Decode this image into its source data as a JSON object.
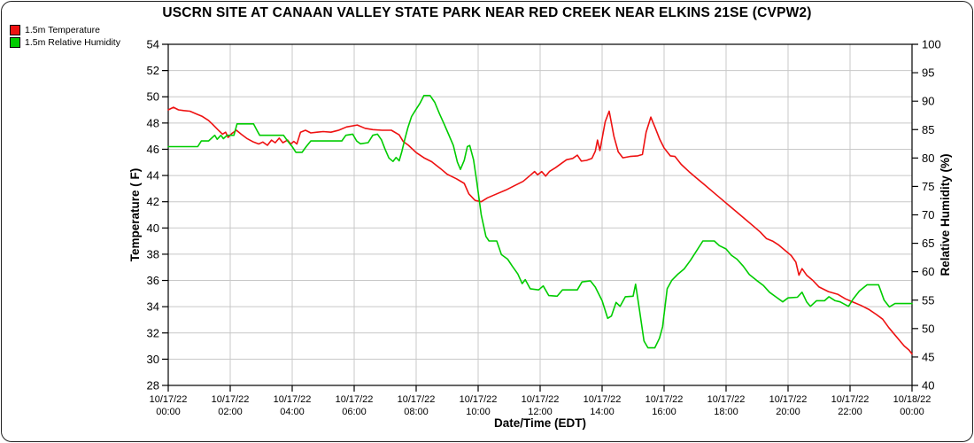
{
  "title": "USCRN SITE AT CANAAN VALLEY STATE PARK NEAR RED CREEK NEAR ELKINS 21SE (CVPW2)",
  "colors": {
    "temperature": "#ee1111",
    "humidity": "#00cc00",
    "grid": "#c8c8c8",
    "axis": "#000000"
  },
  "chart_data": {
    "type": "line",
    "title": "USCRN SITE AT CANAAN VALLEY STATE PARK NEAR RED CREEK NEAR ELKINS 21SE (CVPW2)",
    "grid": true,
    "legend_position": "top-left",
    "x_axis": {
      "label": "Date/Time (EDT)",
      "min_hours": 0,
      "max_hours": 24,
      "ticks": [
        {
          "hour": 0,
          "date": "10/17/22",
          "time": "00:00"
        },
        {
          "hour": 2,
          "date": "10/17/22",
          "time": "02:00"
        },
        {
          "hour": 4,
          "date": "10/17/22",
          "time": "04:00"
        },
        {
          "hour": 6,
          "date": "10/17/22",
          "time": "06:00"
        },
        {
          "hour": 8,
          "date": "10/17/22",
          "time": "08:00"
        },
        {
          "hour": 10,
          "date": "10/17/22",
          "time": "10:00"
        },
        {
          "hour": 12,
          "date": "10/17/22",
          "time": "12:00"
        },
        {
          "hour": 14,
          "date": "10/17/22",
          "time": "14:00"
        },
        {
          "hour": 16,
          "date": "10/17/22",
          "time": "16:00"
        },
        {
          "hour": 18,
          "date": "10/17/22",
          "time": "18:00"
        },
        {
          "hour": 20,
          "date": "10/17/22",
          "time": "20:00"
        },
        {
          "hour": 22,
          "date": "10/17/22",
          "time": "22:00"
        },
        {
          "hour": 24,
          "date": "10/18/22",
          "time": "00:00"
        }
      ]
    },
    "y_left": {
      "label": "Temperature ( F)",
      "min": 28,
      "max": 54,
      "ticks": [
        54,
        52,
        50,
        48,
        46,
        44,
        42,
        40,
        38,
        36,
        34,
        32,
        30,
        28
      ]
    },
    "y_right": {
      "label": "Relative Humidity (%)",
      "min": 40,
      "max": 100,
      "ticks": [
        100,
        95,
        90,
        85,
        80,
        75,
        70,
        65,
        60,
        55,
        50,
        45,
        40
      ]
    },
    "series": [
      {
        "name": "1.5m Temperature",
        "axis": "left",
        "color": "#ee1111",
        "points": [
          [
            0,
            49.0
          ],
          [
            0.17,
            49.2
          ],
          [
            0.33,
            49.0
          ],
          [
            0.5,
            48.95
          ],
          [
            0.7,
            48.9
          ],
          [
            0.9,
            48.7
          ],
          [
            1.1,
            48.5
          ],
          [
            1.3,
            48.2
          ],
          [
            1.43,
            47.9
          ],
          [
            1.6,
            47.5
          ],
          [
            1.75,
            47.15
          ],
          [
            1.85,
            47.3
          ],
          [
            1.93,
            46.9
          ],
          [
            2.05,
            47.2
          ],
          [
            2.2,
            47.45
          ],
          [
            2.35,
            47.15
          ],
          [
            2.55,
            46.8
          ],
          [
            2.75,
            46.55
          ],
          [
            2.92,
            46.4
          ],
          [
            3.05,
            46.55
          ],
          [
            3.2,
            46.3
          ],
          [
            3.33,
            46.7
          ],
          [
            3.45,
            46.5
          ],
          [
            3.58,
            46.85
          ],
          [
            3.7,
            46.5
          ],
          [
            3.85,
            46.7
          ],
          [
            3.95,
            46.4
          ],
          [
            4.05,
            46.6
          ],
          [
            4.15,
            46.4
          ],
          [
            4.27,
            47.3
          ],
          [
            4.43,
            47.45
          ],
          [
            4.6,
            47.25
          ],
          [
            4.8,
            47.3
          ],
          [
            5.0,
            47.35
          ],
          [
            5.25,
            47.3
          ],
          [
            5.5,
            47.45
          ],
          [
            5.75,
            47.7
          ],
          [
            6.1,
            47.85
          ],
          [
            6.35,
            47.6
          ],
          [
            6.6,
            47.5
          ],
          [
            6.9,
            47.45
          ],
          [
            7.2,
            47.45
          ],
          [
            7.45,
            47.1
          ],
          [
            7.58,
            46.6
          ],
          [
            7.75,
            46.3
          ],
          [
            8.0,
            45.75
          ],
          [
            8.25,
            45.35
          ],
          [
            8.5,
            45.05
          ],
          [
            8.8,
            44.5
          ],
          [
            9.0,
            44.1
          ],
          [
            9.3,
            43.75
          ],
          [
            9.55,
            43.4
          ],
          [
            9.7,
            42.6
          ],
          [
            9.9,
            42.1
          ],
          [
            10.1,
            42.0
          ],
          [
            10.3,
            42.3
          ],
          [
            10.6,
            42.6
          ],
          [
            10.9,
            42.9
          ],
          [
            11.15,
            43.2
          ],
          [
            11.45,
            43.55
          ],
          [
            11.7,
            44.05
          ],
          [
            11.82,
            44.3
          ],
          [
            11.92,
            44.05
          ],
          [
            12.05,
            44.3
          ],
          [
            12.18,
            43.95
          ],
          [
            12.3,
            44.3
          ],
          [
            12.5,
            44.6
          ],
          [
            12.67,
            44.9
          ],
          [
            12.85,
            45.2
          ],
          [
            13.05,
            45.3
          ],
          [
            13.2,
            45.55
          ],
          [
            13.33,
            45.1
          ],
          [
            13.5,
            45.15
          ],
          [
            13.67,
            45.3
          ],
          [
            13.78,
            45.85
          ],
          [
            13.85,
            46.7
          ],
          [
            13.93,
            45.9
          ],
          [
            14.1,
            48.1
          ],
          [
            14.23,
            48.9
          ],
          [
            14.38,
            47.0
          ],
          [
            14.52,
            45.8
          ],
          [
            14.67,
            45.35
          ],
          [
            14.9,
            45.45
          ],
          [
            15.15,
            45.5
          ],
          [
            15.3,
            45.6
          ],
          [
            15.42,
            47.3
          ],
          [
            15.57,
            48.45
          ],
          [
            15.72,
            47.6
          ],
          [
            15.85,
            46.8
          ],
          [
            16.0,
            46.1
          ],
          [
            16.2,
            45.5
          ],
          [
            16.35,
            45.45
          ],
          [
            16.55,
            44.85
          ],
          [
            16.8,
            44.3
          ],
          [
            17.0,
            43.9
          ],
          [
            17.3,
            43.3
          ],
          [
            17.6,
            42.7
          ],
          [
            17.9,
            42.1
          ],
          [
            18.1,
            41.7
          ],
          [
            18.35,
            41.2
          ],
          [
            18.6,
            40.7
          ],
          [
            18.85,
            40.2
          ],
          [
            19.1,
            39.7
          ],
          [
            19.3,
            39.2
          ],
          [
            19.5,
            39.0
          ],
          [
            19.7,
            38.7
          ],
          [
            19.9,
            38.3
          ],
          [
            20.1,
            37.9
          ],
          [
            20.25,
            37.4
          ],
          [
            20.35,
            36.4
          ],
          [
            20.45,
            36.9
          ],
          [
            20.6,
            36.4
          ],
          [
            20.8,
            36.0
          ],
          [
            21.0,
            35.5
          ],
          [
            21.3,
            35.15
          ],
          [
            21.6,
            34.95
          ],
          [
            21.85,
            34.6
          ],
          [
            22.1,
            34.35
          ],
          [
            22.35,
            34.1
          ],
          [
            22.6,
            33.8
          ],
          [
            22.85,
            33.4
          ],
          [
            23.05,
            33.05
          ],
          [
            23.25,
            32.4
          ],
          [
            23.5,
            31.7
          ],
          [
            23.75,
            31.0
          ],
          [
            23.9,
            30.7
          ],
          [
            24,
            30.4
          ]
        ]
      },
      {
        "name": "1.5m Relative Humidity",
        "axis": "right",
        "color": "#00cc00",
        "points": [
          [
            0,
            82
          ],
          [
            0.95,
            82
          ],
          [
            1.07,
            83
          ],
          [
            1.3,
            83
          ],
          [
            1.5,
            84
          ],
          [
            1.58,
            83.3
          ],
          [
            1.7,
            84
          ],
          [
            1.78,
            83.4
          ],
          [
            1.9,
            84
          ],
          [
            2.12,
            84
          ],
          [
            2.22,
            86
          ],
          [
            2.75,
            86
          ],
          [
            2.87,
            84.8
          ],
          [
            2.95,
            84
          ],
          [
            3.72,
            84
          ],
          [
            3.85,
            83
          ],
          [
            4.0,
            82
          ],
          [
            4.12,
            81
          ],
          [
            4.32,
            81
          ],
          [
            4.45,
            82
          ],
          [
            4.6,
            83
          ],
          [
            5.6,
            83
          ],
          [
            5.73,
            84
          ],
          [
            5.95,
            84.2
          ],
          [
            6.08,
            83
          ],
          [
            6.2,
            82.5
          ],
          [
            6.45,
            82.7
          ],
          [
            6.6,
            84
          ],
          [
            6.75,
            84.2
          ],
          [
            6.88,
            83.2
          ],
          [
            7.0,
            81.5
          ],
          [
            7.12,
            80
          ],
          [
            7.25,
            79.4
          ],
          [
            7.35,
            80.1
          ],
          [
            7.45,
            79.5
          ],
          [
            7.53,
            81
          ],
          [
            7.62,
            83
          ],
          [
            7.73,
            85.3
          ],
          [
            7.85,
            87.3
          ],
          [
            8.0,
            88.6
          ],
          [
            8.12,
            89.6
          ],
          [
            8.25,
            91
          ],
          [
            8.45,
            91
          ],
          [
            8.6,
            89.8
          ],
          [
            8.75,
            87.8
          ],
          [
            8.9,
            86
          ],
          [
            9.05,
            84.1
          ],
          [
            9.2,
            82.2
          ],
          [
            9.33,
            79.3
          ],
          [
            9.43,
            78
          ],
          [
            9.55,
            79.6
          ],
          [
            9.65,
            82
          ],
          [
            9.73,
            82.2
          ],
          [
            9.85,
            79.7
          ],
          [
            9.95,
            76
          ],
          [
            10.1,
            70
          ],
          [
            10.25,
            66.2
          ],
          [
            10.35,
            65.4
          ],
          [
            10.6,
            65.4
          ],
          [
            10.75,
            63
          ],
          [
            10.95,
            62.2
          ],
          [
            11.1,
            61
          ],
          [
            11.28,
            59.6
          ],
          [
            11.42,
            57.9
          ],
          [
            11.52,
            58.6
          ],
          [
            11.68,
            57
          ],
          [
            11.95,
            56.8
          ],
          [
            12.1,
            57.5
          ],
          [
            12.28,
            55.8
          ],
          [
            12.55,
            55.7
          ],
          [
            12.72,
            56.8
          ],
          [
            13.2,
            56.8
          ],
          [
            13.35,
            58.2
          ],
          [
            13.62,
            58.4
          ],
          [
            13.78,
            57.3
          ],
          [
            14.0,
            54.9
          ],
          [
            14.18,
            51.8
          ],
          [
            14.3,
            52.2
          ],
          [
            14.45,
            54.6
          ],
          [
            14.58,
            53.9
          ],
          [
            14.75,
            55.6
          ],
          [
            15.0,
            55.7
          ],
          [
            15.08,
            57.8
          ],
          [
            15.2,
            53.5
          ],
          [
            15.35,
            47.8
          ],
          [
            15.48,
            46.6
          ],
          [
            15.7,
            46.6
          ],
          [
            15.85,
            48.3
          ],
          [
            15.95,
            50.3
          ],
          [
            16.1,
            57
          ],
          [
            16.25,
            58.5
          ],
          [
            16.45,
            59.6
          ],
          [
            16.65,
            60.5
          ],
          [
            16.85,
            62
          ],
          [
            17.05,
            63.7
          ],
          [
            17.25,
            65.4
          ],
          [
            17.62,
            65.4
          ],
          [
            17.78,
            64.6
          ],
          [
            18.0,
            64
          ],
          [
            18.17,
            62.9
          ],
          [
            18.35,
            62.2
          ],
          [
            18.55,
            61
          ],
          [
            18.75,
            59.5
          ],
          [
            18.98,
            58.5
          ],
          [
            19.2,
            57.6
          ],
          [
            19.4,
            56.4
          ],
          [
            19.6,
            55.6
          ],
          [
            19.83,
            54.7
          ],
          [
            20.0,
            55.4
          ],
          [
            20.3,
            55.5
          ],
          [
            20.45,
            56.4
          ],
          [
            20.6,
            54.7
          ],
          [
            20.72,
            53.9
          ],
          [
            20.92,
            54.9
          ],
          [
            21.18,
            54.9
          ],
          [
            21.32,
            55.6
          ],
          [
            21.52,
            54.9
          ],
          [
            21.68,
            54.7
          ],
          [
            21.95,
            53.9
          ],
          [
            22.1,
            55.2
          ],
          [
            22.3,
            56.6
          ],
          [
            22.55,
            57.7
          ],
          [
            22.92,
            57.7
          ],
          [
            23.1,
            55
          ],
          [
            23.27,
            53.8
          ],
          [
            23.45,
            54.4
          ],
          [
            24,
            54.4
          ]
        ]
      }
    ]
  }
}
